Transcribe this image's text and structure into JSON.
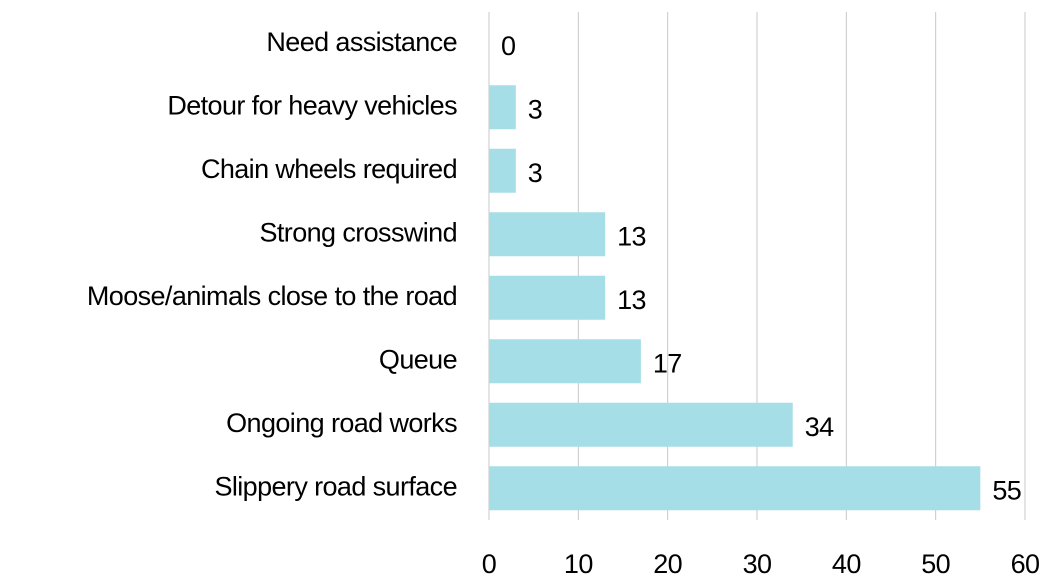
{
  "chart_data": {
    "type": "bar",
    "orientation": "horizontal",
    "categories": [
      "Need assistance",
      "Detour for heavy vehicles",
      "Chain wheels required",
      "Strong crosswind",
      "Moose/animals close to the road",
      "Queue",
      "Ongoing road works",
      "Slippery road surface"
    ],
    "values": [
      0,
      3,
      3,
      13,
      13,
      17,
      34,
      55
    ],
    "color": "#a5dee6",
    "xlim": [
      0,
      60
    ],
    "xticks": [
      0,
      10,
      20,
      30,
      40,
      50,
      60
    ],
    "grid": true
  }
}
